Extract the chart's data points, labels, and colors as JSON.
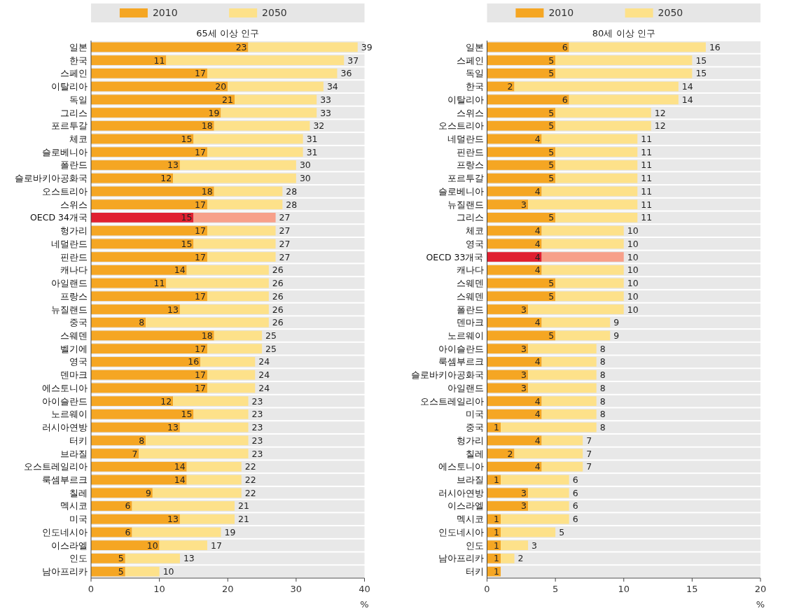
{
  "chart_data": [
    {
      "type": "bar",
      "orientation": "horizontal",
      "stacked": true,
      "title": "65세 이상 인구",
      "xlabel": "%",
      "legend": "top",
      "xlim": [
        0,
        40
      ],
      "xticks": [
        0,
        10,
        20,
        30,
        40
      ],
      "categories": [
        "일본",
        "한국",
        "스페인",
        "이탈리아",
        "독일",
        "그리스",
        "포르투갈",
        "체코",
        "슬로베니아",
        "폴란드",
        "슬로바키아공화국",
        "오스트리아",
        "스위스",
        "OECD 34개국",
        "헝가리",
        "네덜란드",
        "핀란드",
        "캐나다",
        "아일랜드",
        "프랑스",
        "뉴질랜드",
        "중국",
        "스웨덴",
        "벨기에",
        "영국",
        "덴마크",
        "에스토니아",
        "아이슬란드",
        "노르웨이",
        "러시아연방",
        "터키",
        "브라질",
        "오스트레일리아",
        "룩셈부르크",
        "칠레",
        "멕시코",
        "미국",
        "인도네시아",
        "이스라엘",
        "인도",
        "남아프리카"
      ],
      "series": [
        {
          "name": "2010",
          "color": "#f5a623",
          "colors": [
            "#f5a623",
            "#f5a623",
            "#f5a623",
            "#f5a623",
            "#f5a623",
            "#f5a623",
            "#f5a623",
            "#f5a623",
            "#f5a623",
            "#f5a623",
            "#f5a623",
            "#f5a623",
            "#f5a623",
            "#e02030",
            "#f5a623",
            "#f5a623",
            "#f5a623",
            "#f5a623",
            "#f5a623",
            "#f5a623",
            "#f5a623",
            "#f5a623",
            "#f5a623",
            "#f5a623",
            "#f5a623",
            "#f5a623",
            "#f5a623",
            "#f5a623",
            "#f5a623",
            "#f5a623",
            "#f5a623",
            "#f5a623",
            "#f5a623",
            "#f5a623",
            "#f5a623",
            "#f5a623",
            "#f5a623",
            "#f5a623",
            "#f5a623",
            "#f5a623",
            "#f5a623"
          ],
          "values": [
            23,
            11,
            17,
            20,
            21,
            19,
            18,
            15,
            17,
            13,
            12,
            18,
            17,
            15,
            17,
            15,
            17,
            14,
            11,
            17,
            13,
            8,
            18,
            17,
            16,
            17,
            17,
            12,
            15,
            13,
            8,
            7,
            14,
            14,
            9,
            6,
            13,
            6,
            10,
            5,
            5
          ],
          "value_labels": [
            "23",
            "11",
            "17",
            "20",
            "21",
            "19",
            "18",
            "15",
            "17",
            "13",
            "12",
            "18",
            "17",
            "15",
            "17",
            "15",
            "17",
            "14",
            "11",
            "17",
            "13",
            "8",
            "18",
            "17",
            "16",
            "17",
            "17",
            "12",
            "15",
            "13",
            "8",
            "7",
            "14",
            "14",
            "9",
            "6",
            "13",
            "6",
            "10",
            "5",
            "5"
          ]
        },
        {
          "name": "2050",
          "color": "#fde18a",
          "colors": [
            "#fde18a",
            "#fde18a",
            "#fde18a",
            "#fde18a",
            "#fde18a",
            "#fde18a",
            "#fde18a",
            "#fde18a",
            "#fde18a",
            "#fde18a",
            "#fde18a",
            "#fde18a",
            "#fde18a",
            "#f7a08a",
            "#fde18a",
            "#fde18a",
            "#fde18a",
            "#fde18a",
            "#fde18a",
            "#fde18a",
            "#fde18a",
            "#fde18a",
            "#fde18a",
            "#fde18a",
            "#fde18a",
            "#fde18a",
            "#fde18a",
            "#fde18a",
            "#fde18a",
            "#fde18a",
            "#fde18a",
            "#fde18a",
            "#fde18a",
            "#fde18a",
            "#fde18a",
            "#fde18a",
            "#fde18a",
            "#fde18a",
            "#fde18a",
            "#fde18a",
            "#fde18a"
          ],
          "values": [
            16,
            26,
            19,
            14,
            12,
            14,
            14,
            16,
            14,
            17,
            18,
            10,
            11,
            12,
            10,
            12,
            10,
            12,
            15,
            9,
            13,
            18,
            7,
            8,
            8,
            7,
            7,
            11,
            8,
            10,
            15,
            16,
            8,
            8,
            13,
            15,
            8,
            13,
            7,
            8,
            5
          ]
        }
      ],
      "totals": [
        "39",
        "37",
        "36",
        "34",
        "33",
        "33",
        "32",
        "31",
        "31",
        "30",
        "30",
        "28",
        "28",
        "27",
        "27",
        "27",
        "27",
        "26",
        "26",
        "26",
        "26",
        "26",
        "25",
        "25",
        "24",
        "24",
        "24",
        "23",
        "23",
        "23",
        "23",
        "23",
        "22",
        "22",
        "22",
        "21",
        "21",
        "19",
        "17",
        "13",
        "10"
      ]
    },
    {
      "type": "bar",
      "orientation": "horizontal",
      "stacked": true,
      "title": "80세 이상 인구",
      "xlabel": "%",
      "legend": "top",
      "xlim": [
        0,
        20
      ],
      "xticks": [
        0,
        5,
        10,
        15,
        20
      ],
      "categories": [
        "일본",
        "스페인",
        "독일",
        "한국",
        "이탈리아",
        "스위스",
        "오스트리아",
        "네덜란드",
        "핀란드",
        "프랑스",
        "포르투갈",
        "슬로베니아",
        "뉴질랜드",
        "그리스",
        "체코",
        "영국",
        "OECD 33개국",
        "캐나다",
        "스웨덴",
        "스웨덴",
        "폴란드",
        "덴마크",
        "노르웨이",
        "아이슬란드",
        "룩셈부르크",
        "슬로바키아공화국",
        "아일랜드",
        "오스트레일리아",
        "미국",
        "중국",
        "헝가리",
        "칠레",
        "에스토니아",
        "브라질",
        "러시아연방",
        "이스라엘",
        "멕시코",
        "인도네시아",
        "인도",
        "남아프리카",
        "터키"
      ],
      "series": [
        {
          "name": "2010",
          "color": "#f5a623",
          "colors": [
            "#f5a623",
            "#f5a623",
            "#f5a623",
            "#f5a623",
            "#f5a623",
            "#f5a623",
            "#f5a623",
            "#f5a623",
            "#f5a623",
            "#f5a623",
            "#f5a623",
            "#f5a623",
            "#f5a623",
            "#f5a623",
            "#f5a623",
            "#f5a623",
            "#e02030",
            "#f5a623",
            "#f5a623",
            "#f5a623",
            "#f5a623",
            "#f5a623",
            "#f5a623",
            "#f5a623",
            "#f5a623",
            "#f5a623",
            "#f5a623",
            "#f5a623",
            "#f5a623",
            "#f5a623",
            "#f5a623",
            "#f5a623",
            "#f5a623",
            "#f5a623",
            "#f5a623",
            "#f5a623",
            "#f5a623",
            "#f5a623",
            "#f5a623",
            "#f5a623",
            "#f5a623"
          ],
          "values": [
            6,
            5,
            5,
            2,
            6,
            5,
            5,
            4,
            5,
            5,
            5,
            4,
            3,
            5,
            4,
            4,
            4,
            4,
            5,
            5,
            3,
            4,
            5,
            3,
            4,
            3,
            3,
            4,
            4,
            1,
            4,
            2,
            4,
            1,
            3,
            3,
            1,
            1,
            1,
            1,
            1
          ],
          "value_labels": [
            "6",
            "5",
            "5",
            "2",
            "6",
            "5",
            "5",
            "4",
            "5",
            "5",
            "5",
            "4",
            "3",
            "5",
            "4",
            "4",
            "4",
            "4",
            "5",
            "5",
            "3",
            "4",
            "5",
            "3",
            "4",
            "3",
            "3",
            "4",
            "4",
            "1",
            "4",
            "2",
            "4",
            "1",
            "3",
            "3",
            "1",
            "1",
            "1",
            "1",
            "1"
          ]
        },
        {
          "name": "2050",
          "color": "#fde18a",
          "colors": [
            "#fde18a",
            "#fde18a",
            "#fde18a",
            "#fde18a",
            "#fde18a",
            "#fde18a",
            "#fde18a",
            "#fde18a",
            "#fde18a",
            "#fde18a",
            "#fde18a",
            "#fde18a",
            "#fde18a",
            "#fde18a",
            "#fde18a",
            "#fde18a",
            "#f7a08a",
            "#fde18a",
            "#fde18a",
            "#fde18a",
            "#fde18a",
            "#fde18a",
            "#fde18a",
            "#fde18a",
            "#fde18a",
            "#fde18a",
            "#fde18a",
            "#fde18a",
            "#fde18a",
            "#fde18a",
            "#fde18a",
            "#fde18a",
            "#fde18a",
            "#fde18a",
            "#fde18a",
            "#fde18a",
            "#fde18a",
            "#fde18a",
            "#fde18a",
            "#fde18a",
            "#fde18a"
          ],
          "values": [
            10,
            10,
            10,
            12,
            8,
            7,
            7,
            7,
            6,
            6,
            6,
            7,
            8,
            6,
            6,
            6,
            6,
            6,
            5,
            5,
            7,
            5,
            4,
            5,
            4,
            5,
            5,
            4,
            4,
            7,
            3,
            5,
            3,
            5,
            3,
            3,
            5,
            4,
            2,
            1,
            null
          ]
        }
      ],
      "totals": [
        "16",
        "15",
        "15",
        "14",
        "14",
        "12",
        "12",
        "11",
        "11",
        "11",
        "11",
        "11",
        "11",
        "11",
        "10",
        "10",
        "10",
        "10",
        "10",
        "10",
        "10",
        "9",
        "9",
        "8",
        "8",
        "8",
        "8",
        "8",
        "8",
        "8",
        "7",
        "7",
        "7",
        "6",
        "6",
        "6",
        "6",
        "5",
        "3",
        "2",
        null
      ]
    }
  ]
}
